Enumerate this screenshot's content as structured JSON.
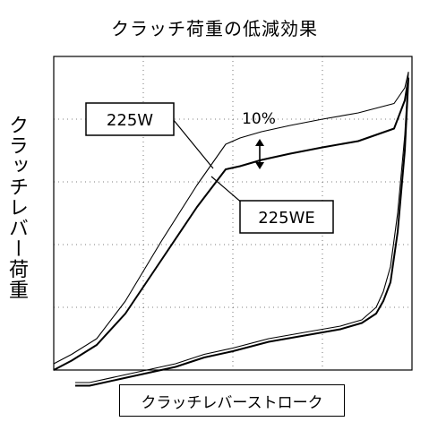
{
  "chart_data": {
    "type": "line",
    "title": "クラッチ荷重の低減効果",
    "xlabel": "クラッチレバーストローク",
    "ylabel": "クラッチレバー荷重",
    "grid": true,
    "xlim": [
      0,
      100
    ],
    "ylim": [
      0,
      100
    ],
    "series": [
      {
        "name": "225W",
        "color": "#000000",
        "x": [
          0,
          5,
          12,
          20,
          30,
          40,
          48,
          52,
          58,
          66,
          75,
          85,
          95,
          98,
          99,
          98,
          96,
          94,
          92,
          90,
          86,
          80,
          70,
          60,
          50,
          42,
          34,
          26,
          18,
          10,
          6
        ],
        "y": [
          2,
          5,
          10,
          22,
          41,
          59,
          72,
          74,
          76,
          78,
          80,
          82,
          85,
          90,
          95,
          75,
          50,
          33,
          25,
          20,
          16,
          14,
          12,
          10,
          7,
          5,
          2,
          0,
          -2,
          -4,
          -4
        ]
      },
      {
        "name": "225WE",
        "color": "#000000",
        "x": [
          0,
          5,
          12,
          20,
          30,
          40,
          48,
          52,
          58,
          66,
          75,
          85,
          95,
          98,
          99,
          98,
          96,
          94,
          92,
          90,
          86,
          80,
          70,
          60,
          50,
          42,
          34,
          26,
          18,
          10,
          6
        ],
        "y": [
          0,
          3,
          8,
          18,
          35,
          52,
          64,
          65,
          67,
          69,
          71,
          73,
          77,
          86,
          93,
          70,
          44,
          28,
          22,
          18,
          15,
          13,
          11,
          9,
          6,
          4,
          1,
          -1,
          -3,
          -5,
          -5
        ]
      }
    ],
    "annotations": [
      {
        "label": "225W",
        "kind": "boxed-label"
      },
      {
        "label": "225WE",
        "kind": "boxed-label"
      },
      {
        "label": "10%",
        "kind": "text-with-double-arrow"
      }
    ]
  }
}
